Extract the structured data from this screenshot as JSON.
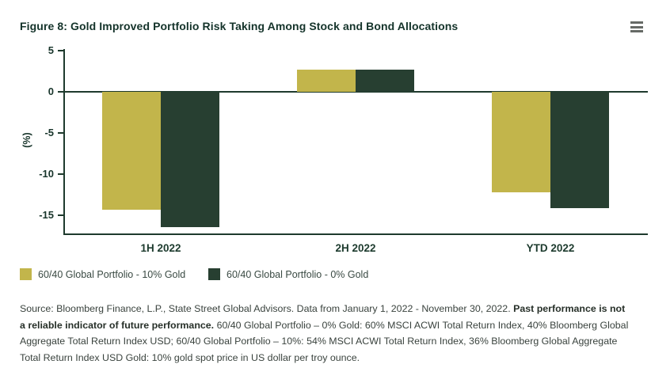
{
  "header": {
    "title": "Figure 8: Gold Improved Portfolio Risk Taking Among Stock and Bond Allocations",
    "menu_icon": "hamburger-menu-icon"
  },
  "colors": {
    "gold": "#c2b54b",
    "dark_green": "#273f31",
    "axis": "#1e3a2d",
    "menu_icon_gray": "#666a66"
  },
  "chart_data": {
    "type": "bar",
    "title": "Figure 8: Gold Improved Portfolio Risk Taking Among Stock and Bond Allocations",
    "categories": [
      "1H 2022",
      "2H 2022",
      "YTD 2022"
    ],
    "series": [
      {
        "name": "60/40 Global Portfolio - 10% Gold",
        "color": "#c2b54b",
        "values": [
          -14.3,
          2.7,
          -12.2
        ]
      },
      {
        "name": "60/40 Global Portfolio - 0% Gold",
        "color": "#273f31",
        "values": [
          -16.4,
          2.7,
          -14.1
        ]
      }
    ],
    "xlabel": "",
    "ylabel": "(%)",
    "yticks": [
      5,
      0,
      -5,
      -10,
      -15
    ],
    "ylim": [
      -17.3,
      5.2
    ],
    "grid": false,
    "zero_line": true,
    "legend_position": "bottom-left"
  },
  "legend": {
    "items": [
      {
        "label": "60/40 Global Portfolio - 10% Gold",
        "color": "#c2b54b"
      },
      {
        "label": "60/40 Global Portfolio - 0% Gold",
        "color": "#273f31"
      }
    ]
  },
  "source": {
    "text_before_bold": "Source: Bloomberg Finance, L.P., State Street Global Advisors. Data from January 1, 2022 - November 30, 2022. ",
    "bold_text": "Past performance is not a reliable indicator of future performance.",
    "text_after_bold": " 60/40 Global Portfolio – 0% Gold: 60% MSCI ACWI Total Return Index, 40% Bloomberg Global Aggregate Total Return Index USD; 60/40 Global Portfolio – 10%: 54% MSCI ACWI Total Return Index, 36% Bloomberg Global Aggregate Total Return Index USD Gold: 10% gold spot price in US dollar per troy ounce."
  }
}
